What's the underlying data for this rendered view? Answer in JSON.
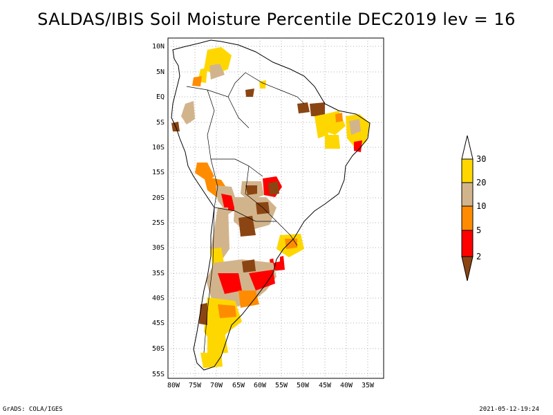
{
  "title": "SALDAS/IBIS Soil Moisture Percentile DEC2019 lev = 16",
  "map": {
    "lat_labels": [
      "10N",
      "5N",
      "EQ",
      "5S",
      "10S",
      "15S",
      "20S",
      "25S",
      "30S",
      "35S",
      "40S",
      "45S",
      "50S",
      "55S"
    ],
    "lon_labels": [
      "80W",
      "75W",
      "70W",
      "65W",
      "60W",
      "55W",
      "50W",
      "45W",
      "40W",
      "35W"
    ]
  },
  "legend": {
    "levels": [
      "30",
      "20",
      "10",
      "5",
      "2"
    ],
    "colors": {
      "above_30": "#ffffff",
      "p20_30": "#ffd700",
      "p10_20": "#d2b48c",
      "p5_10": "#ff8c00",
      "p2_5": "#ff0000",
      "below_2": "#8b4513"
    }
  },
  "footer": {
    "left": "GrADS: COLA/IGES",
    "right": "2021-05-12-19:24"
  }
}
